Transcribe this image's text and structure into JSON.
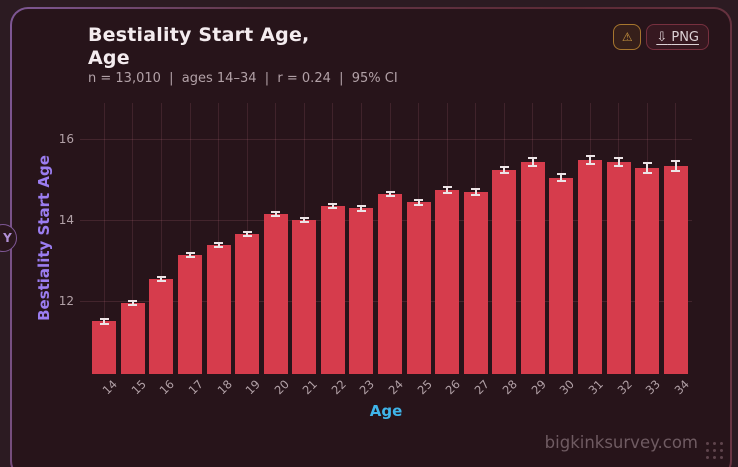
{
  "page": {
    "watermark": "bigkinksurvey.com"
  },
  "toolbar": {
    "warning_icon": "⚠",
    "download_icon": "⇩",
    "download_label": "PNG"
  },
  "side_handle": {
    "label": "Y"
  },
  "chart_data": {
    "type": "bar",
    "title": "Bestiality Start Age, Age",
    "subtitle": "n = 13,010  |  ages 14–34  |  r = 0.24  |  95% CI",
    "xlabel": "Age",
    "ylabel": "Bestiality Start Age",
    "categories": [
      14,
      15,
      16,
      17,
      18,
      19,
      20,
      21,
      22,
      23,
      24,
      25,
      26,
      27,
      28,
      29,
      30,
      31,
      32,
      33,
      34
    ],
    "values": [
      11.5,
      11.95,
      12.55,
      13.15,
      13.4,
      13.65,
      14.15,
      14.0,
      14.35,
      14.3,
      14.65,
      14.45,
      14.75,
      14.7,
      15.25,
      15.45,
      15.05,
      15.5,
      15.45,
      15.3,
      15.35
    ],
    "ci_half_width": [
      0.07,
      0.05,
      0.05,
      0.05,
      0.05,
      0.05,
      0.05,
      0.05,
      0.05,
      0.06,
      0.06,
      0.06,
      0.07,
      0.07,
      0.08,
      0.1,
      0.09,
      0.1,
      0.1,
      0.12,
      0.12
    ],
    "ylim": [
      10.2,
      16.9
    ],
    "yticks": [
      12,
      14,
      16
    ],
    "grid": true,
    "legend": false,
    "sample_n": "13,010",
    "r_value": "0.24",
    "ci_level": "95% CI",
    "bar_color": "#d63c4c",
    "error_color": "#ece4e6",
    "background_color": "#27141a",
    "accent_purple": "#9b7df0",
    "accent_cyan": "#3fb5ea"
  }
}
